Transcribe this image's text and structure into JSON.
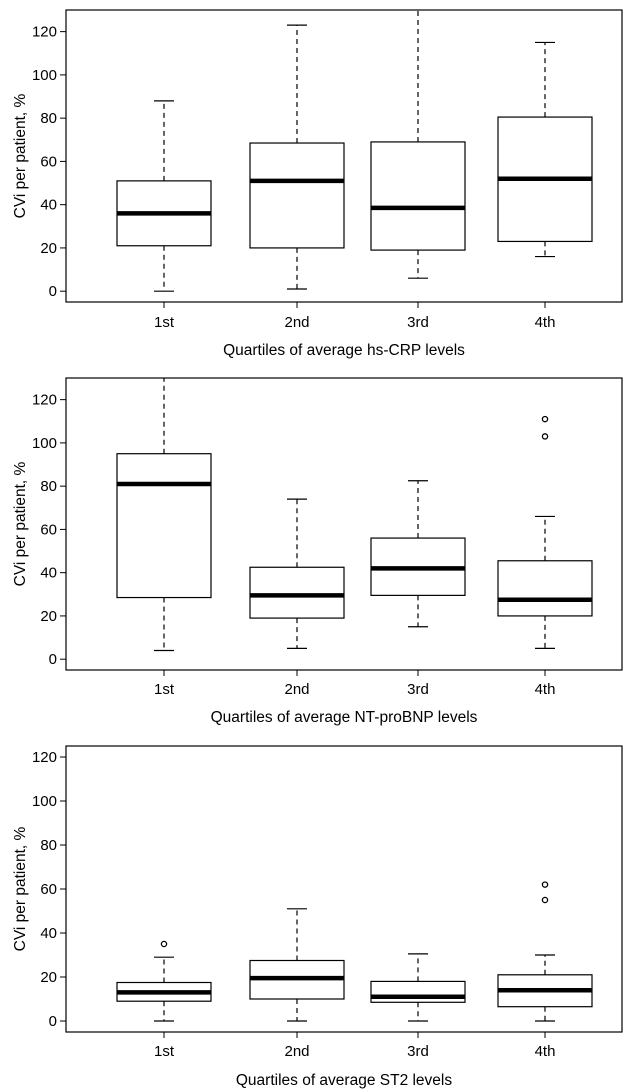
{
  "chart_data": [
    {
      "type": "box",
      "xlabel": "Quartiles of average hs-CRP levels",
      "ylabel": "CVi per patient, %",
      "ylim": [
        -5,
        130
      ],
      "yticks": [
        0,
        20,
        40,
        60,
        80,
        100,
        120
      ],
      "categories": [
        "1st",
        "2nd",
        "3rd",
        "4th"
      ],
      "boxes": [
        {
          "min": 0,
          "q1": 21,
          "median": 36,
          "q3": 51,
          "max": 88,
          "outliers": []
        },
        {
          "min": 1,
          "q1": 20,
          "median": 51,
          "q3": 68.5,
          "max": 123,
          "outliers": []
        },
        {
          "min": 6,
          "q1": 19,
          "median": 38.5,
          "q3": 69,
          "max": 130,
          "outliers": []
        },
        {
          "min": 16,
          "q1": 23,
          "median": 52,
          "q3": 80.5,
          "max": 115,
          "outliers": []
        }
      ],
      "grid": false
    },
    {
      "type": "box",
      "xlabel": "Quartiles of average NT-proBNP levels",
      "ylabel": "CVi per patient, %",
      "ylim": [
        -5,
        130
      ],
      "yticks": [
        0,
        20,
        40,
        60,
        80,
        100,
        120
      ],
      "categories": [
        "1st",
        "2nd",
        "3rd",
        "4th"
      ],
      "boxes": [
        {
          "min": 4,
          "q1": 28.5,
          "median": 81,
          "q3": 95,
          "max": 130,
          "outliers": []
        },
        {
          "min": 5,
          "q1": 19,
          "median": 29.5,
          "q3": 42.5,
          "max": 74,
          "outliers": []
        },
        {
          "min": 15,
          "q1": 29.5,
          "median": 42,
          "q3": 56,
          "max": 82.5,
          "outliers": []
        },
        {
          "min": 5,
          "q1": 20,
          "median": 27.5,
          "q3": 45.5,
          "max": 66,
          "outliers": [
            103,
            111
          ]
        }
      ],
      "grid": false
    },
    {
      "type": "box",
      "xlabel": "Quartiles of average ST2 levels",
      "ylabel": "CVi per patient, %",
      "ylim": [
        -5,
        125
      ],
      "yticks": [
        0,
        20,
        40,
        60,
        80,
        100,
        120
      ],
      "categories": [
        "1st",
        "2nd",
        "3rd",
        "4th"
      ],
      "boxes": [
        {
          "min": 0,
          "q1": 9,
          "median": 13,
          "q3": 17.5,
          "max": 29,
          "outliers": [
            35
          ]
        },
        {
          "min": 0,
          "q1": 10,
          "median": 19.5,
          "q3": 27.5,
          "max": 51,
          "outliers": []
        },
        {
          "min": 0,
          "q1": 8.5,
          "median": 11,
          "q3": 18,
          "max": 30.5,
          "outliers": []
        },
        {
          "min": 0,
          "q1": 6.5,
          "median": 14,
          "q3": 21,
          "max": 30,
          "outliers": [
            55,
            62
          ]
        }
      ],
      "grid": false
    }
  ]
}
